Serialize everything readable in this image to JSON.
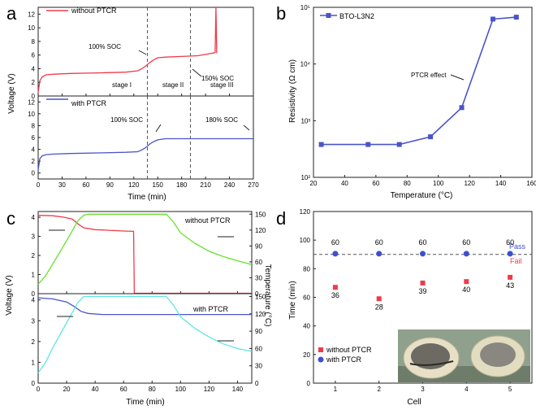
{
  "panel_labels": [
    "a",
    "b",
    "c",
    "d"
  ],
  "chart_data": [
    {
      "type": "line",
      "id": "a",
      "xlabel": "Time (min)",
      "ylabel": "Voltage (V)",
      "xlim": [
        0,
        270
      ],
      "xticks": [
        0,
        30,
        60,
        90,
        120,
        150,
        180,
        210,
        240,
        270
      ],
      "subplots": [
        {
          "ylim": [
            0,
            13
          ],
          "yticks": [
            0,
            2,
            4,
            6,
            8,
            10,
            12
          ],
          "series": [
            {
              "name": "without PTCR",
              "color": "#f03a4a",
              "x": [
                0,
                2,
                5,
                10,
                20,
                40,
                80,
                110,
                125,
                130,
                135,
                140,
                145,
                150,
                160,
                180,
                200,
                210,
                215,
                220,
                222,
                223,
                224
              ],
              "y": [
                0.5,
                2.2,
                2.8,
                3.1,
                3.2,
                3.3,
                3.4,
                3.5,
                3.7,
                4.0,
                4.4,
                4.9,
                5.3,
                5.6,
                5.7,
                5.8,
                5.9,
                6.1,
                6.2,
                6.3,
                6.4,
                13.0,
                6.3
              ]
            }
          ],
          "vlines": [
            137,
            191
          ],
          "annotations": [
            "100% SOC",
            "150% SOC"
          ],
          "stage_labels": [
            "stage I",
            "stage II",
            "stage III"
          ]
        },
        {
          "ylim": [
            -1,
            13
          ],
          "yticks": [
            0,
            2,
            4,
            6,
            8,
            10,
            12
          ],
          "series": [
            {
              "name": "with PTCR",
              "color": "#4a54c8",
              "x": [
                0,
                2,
                5,
                10,
                20,
                40,
                80,
                110,
                125,
                130,
                135,
                140,
                145,
                150,
                160,
                180,
                210,
                240,
                270
              ],
              "y": [
                0.5,
                2.4,
                2.9,
                3.1,
                3.2,
                3.3,
                3.4,
                3.5,
                3.6,
                3.9,
                4.3,
                4.9,
                5.3,
                5.6,
                5.8,
                5.8,
                5.8,
                5.8,
                5.8
              ]
            }
          ],
          "vlines": [
            137,
            191
          ],
          "annotations": [
            "100% SOC",
            "180% SOC"
          ]
        }
      ]
    },
    {
      "type": "line",
      "id": "b",
      "title": "",
      "xlabel": "Temperature (°C)",
      "ylabel": "Resistivity (Ω cm)",
      "xlim": [
        20,
        160
      ],
      "xticks": [
        20,
        40,
        60,
        80,
        100,
        120,
        140,
        160
      ],
      "yscale": "log",
      "ylim": [
        100,
        100000
      ],
      "ytick_labels": [
        "10²",
        "10³",
        "10⁴",
        "10⁵"
      ],
      "series": [
        {
          "name": "BTO-L3N2",
          "color": "#4a54c8",
          "x": [
            25,
            55,
            75,
            95,
            115,
            135,
            150
          ],
          "y": [
            380,
            380,
            380,
            520,
            1700,
            62000,
            67000
          ]
        }
      ],
      "annotations": [
        "PTCR effect"
      ]
    },
    {
      "type": "line",
      "id": "c",
      "xlabel": "Time (min)",
      "ylabel_left": "Voltage (V)",
      "ylabel_right": "Temperature (°C)",
      "xlim": [
        0,
        150
      ],
      "xticks": [
        0,
        20,
        40,
        60,
        80,
        100,
        120,
        140
      ],
      "subplots": [
        {
          "label": "without PTCR",
          "ylim_left": [
            0,
            4.3
          ],
          "yticks_left": [
            0,
            1,
            2,
            3,
            4
          ],
          "ylim_right": [
            0,
            155
          ],
          "yticks_right": [
            0,
            30,
            60,
            90,
            120,
            150
          ],
          "series": [
            {
              "name": "Voltage",
              "axis": "left",
              "color": "#f03a4a",
              "x": [
                0,
                10,
                18,
                24,
                28,
                32,
                40,
                60,
                67,
                67.5,
                150
              ],
              "y": [
                4.1,
                4.08,
                4.0,
                3.9,
                3.65,
                3.45,
                3.35,
                3.28,
                3.26,
                0.02,
                0.02
              ]
            },
            {
              "name": "Temperature",
              "axis": "right",
              "color": "#66e22a",
              "x": [
                0,
                5,
                10,
                20,
                28,
                32,
                35,
                60,
                90,
                95,
                100,
                110,
                120,
                130,
                140,
                150
              ],
              "y": [
                18,
                33,
                55,
                100,
                138,
                148,
                150,
                150,
                150,
                135,
                115,
                95,
                80,
                70,
                62,
                55
              ]
            }
          ]
        },
        {
          "label": "with PTCR",
          "ylim_left": [
            0,
            4.3
          ],
          "yticks_left": [
            0,
            1,
            2,
            3,
            4
          ],
          "ylim_right": [
            0,
            155
          ],
          "yticks_right": [
            0,
            30,
            60,
            90,
            120,
            150
          ],
          "series": [
            {
              "name": "Voltage",
              "axis": "left",
              "color": "#4a54c8",
              "x": [
                0,
                10,
                20,
                26,
                30,
                35,
                45,
                60,
                150
              ],
              "y": [
                4.1,
                4.05,
                3.9,
                3.65,
                3.45,
                3.35,
                3.3,
                3.3,
                3.3
              ]
            },
            {
              "name": "Temperature",
              "axis": "right",
              "color": "#5fe6e2",
              "x": [
                0,
                5,
                10,
                20,
                28,
                32,
                35,
                60,
                90,
                95,
                100,
                110,
                120,
                130,
                140,
                150
              ],
              "y": [
                18,
                35,
                60,
                105,
                140,
                150,
                150,
                150,
                150,
                135,
                115,
                95,
                80,
                68,
                60,
                55
              ]
            }
          ]
        }
      ]
    },
    {
      "type": "scatter",
      "id": "d",
      "xlabel": "Cell",
      "ylabel": "Time (min)",
      "xlim": [
        0.5,
        5.5
      ],
      "xticks": [
        1,
        2,
        3,
        4,
        5
      ],
      "ylim": [
        0,
        120
      ],
      "yticks": [
        0,
        20,
        40,
        60,
        80,
        100,
        120
      ],
      "threshold": 90,
      "threshold_labels": [
        "Pass",
        "Fail"
      ],
      "legend_position": "bottom-left",
      "series": [
        {
          "name": "without PTCR",
          "color": "#f03a4a",
          "marker": "square",
          "x": [
            1,
            2,
            3,
            4,
            5
          ],
          "y": [
            67,
            59,
            70,
            71,
            74
          ],
          "labels": [
            "36",
            "28",
            "39",
            "40",
            "43"
          ]
        },
        {
          "name": "with PTCR",
          "color": "#3c4fd0",
          "marker": "circle",
          "x": [
            1,
            2,
            3,
            4,
            5
          ],
          "y": [
            90.5,
            90.5,
            90.5,
            90.5,
            90.5
          ],
          "labels": [
            "60",
            "60",
            "60",
            "60",
            "60"
          ]
        }
      ]
    }
  ]
}
